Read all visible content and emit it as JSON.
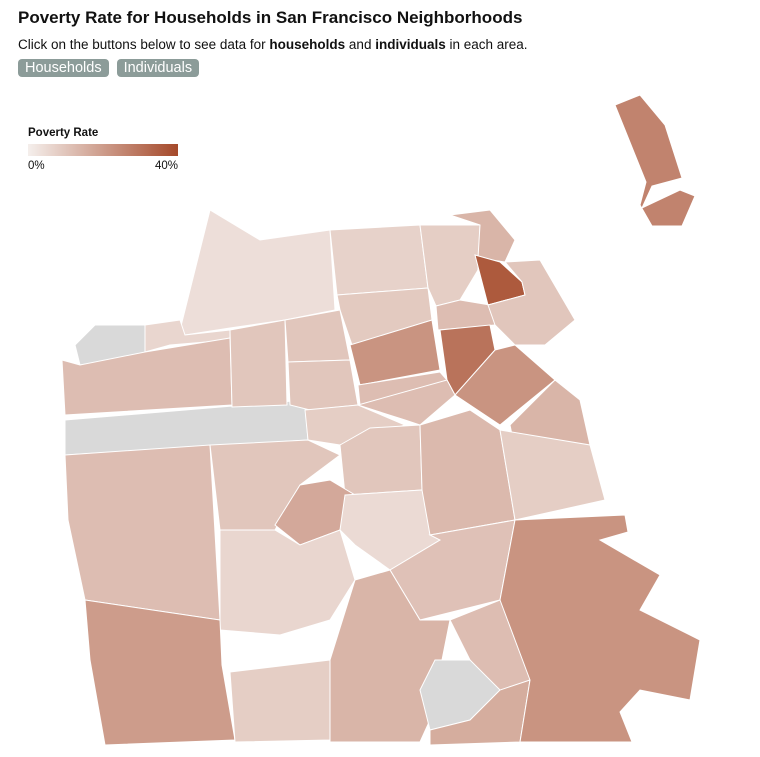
{
  "header": {
    "title": "Poverty Rate for Households in San Francisco Neighborhoods",
    "subtitle": [
      "Click on the buttons below to see data for ",
      "households",
      " and ",
      "individuals",
      " in each area."
    ]
  },
  "buttons": [
    "Households",
    "Individuals"
  ],
  "legend": {
    "title": "Poverty Rate",
    "range": [
      {
        "value": 0,
        "label": "0%"
      },
      {
        "value": 40,
        "label": "40%"
      }
    ],
    "colors": [
      "#f5efec",
      "#a5492a"
    ],
    "missing_color": "#d9d9d9"
  },
  "regions": {
    "values": [
      4,
      null,
      6,
      12,
      null,
      10,
      7,
      9,
      10,
      22,
      10,
      12,
      8,
      14,
      36,
      12,
      10,
      30,
      22,
      14,
      12,
      8,
      10,
      12,
      10,
      17,
      5,
      13,
      8,
      6,
      11,
      20,
      8,
      14,
      12,
      null,
      16,
      22,
      26
    ]
  }
}
